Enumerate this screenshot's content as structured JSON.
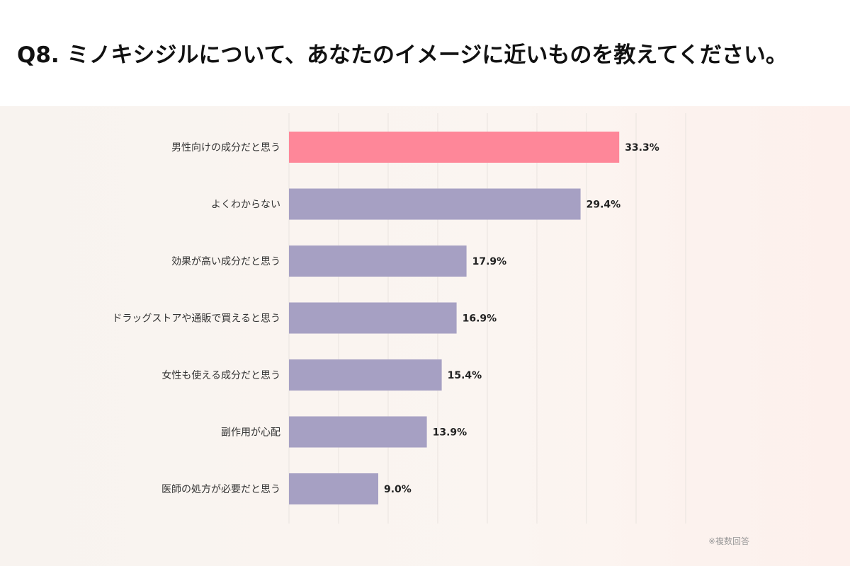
{
  "title": "Q8. ミノキシジルについて、あなたのイメージに近いものを教えてください。",
  "note": "※複数回答",
  "colors": {
    "highlight": "#fe8799",
    "bar": "#a6a0c3",
    "grid": "#e9e4df",
    "label": "#333333",
    "value": "#222222"
  },
  "chart_data": {
    "type": "bar",
    "orientation": "horizontal",
    "categories": [
      "男性向けの成分だと思う",
      "よくわからない",
      "効果が高い成分だと思う",
      "ドラッグストアや通販で買えると思う",
      "女性も使える成分だと思う",
      "副作用が心配",
      "医師の処方が必要だと思う"
    ],
    "values": [
      33.3,
      29.4,
      17.9,
      16.9,
      15.4,
      13.9,
      9.0
    ],
    "value_labels": [
      "33.3%",
      "29.4%",
      "17.9%",
      "16.9%",
      "15.4%",
      "13.9%",
      "9.0%"
    ],
    "highlight_index": 0,
    "xlim": [
      0,
      40
    ],
    "grid": true,
    "title": "Q8. ミノキシジルについて、あなたのイメージに近いものを教えてください。",
    "xlabel": "",
    "ylabel": ""
  }
}
